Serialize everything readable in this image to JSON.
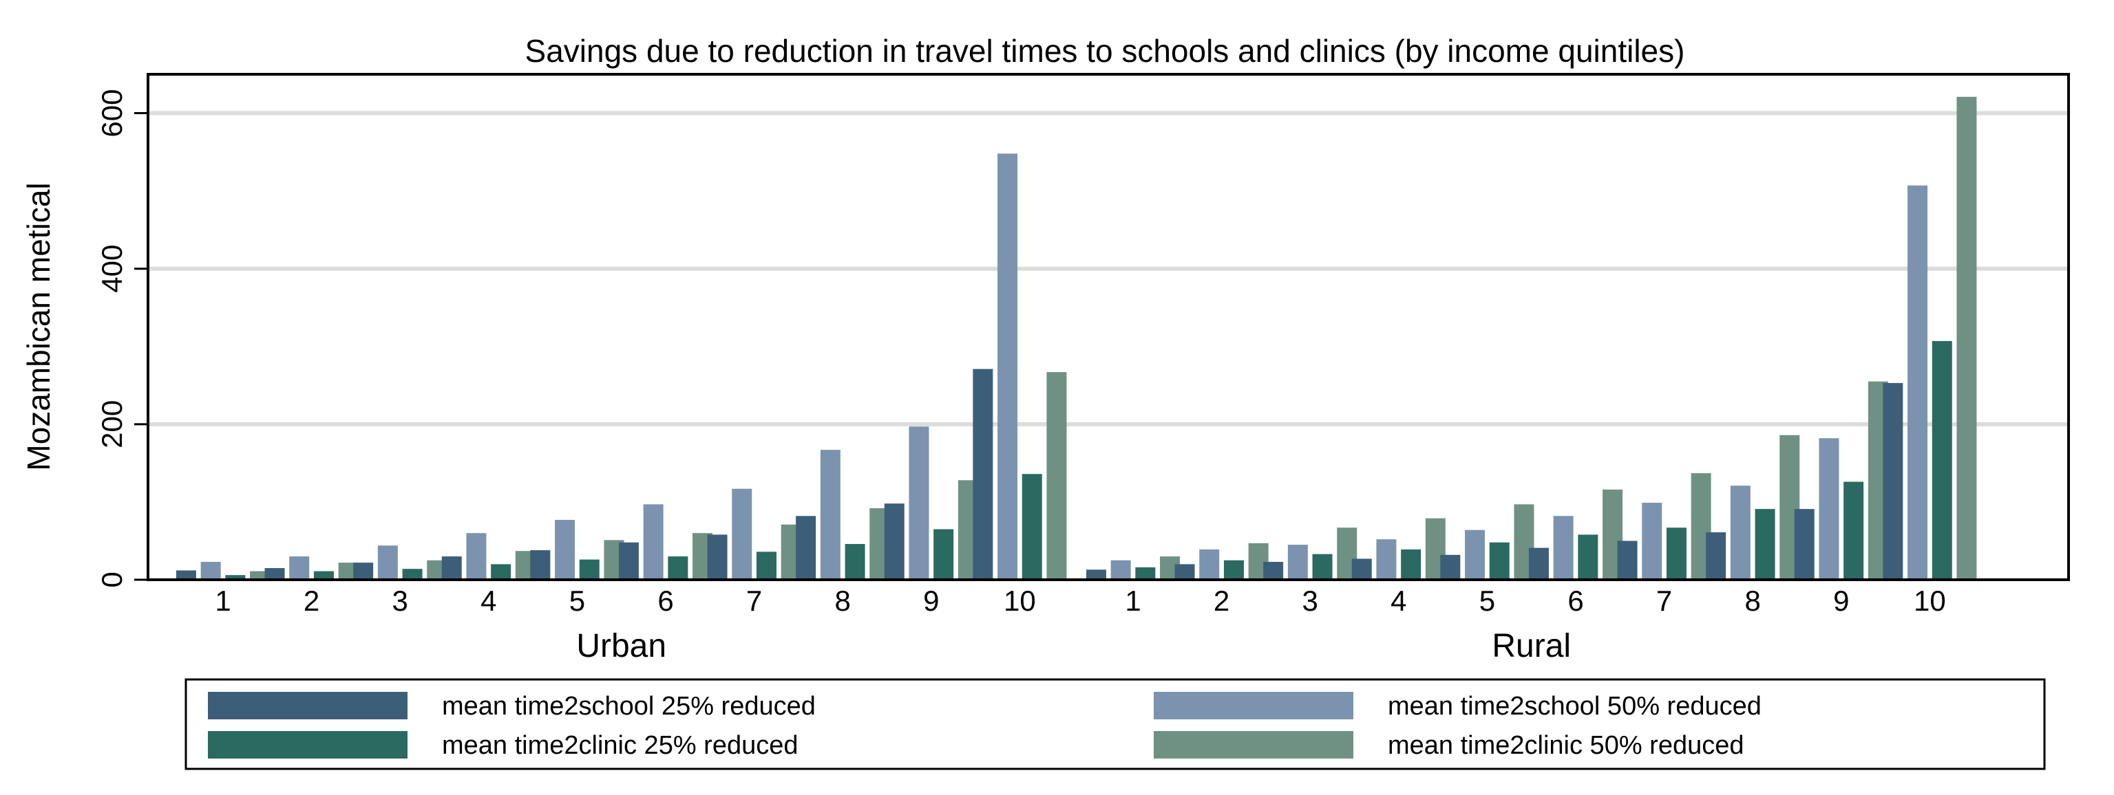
{
  "chart_data": {
    "type": "bar",
    "title": "Savings due to reduction in travel times to schools and clinics (by income quintiles)",
    "ylabel": "Mozambican metical",
    "ylim": [
      0,
      650
    ],
    "yticks": [
      0,
      200,
      400,
      600
    ],
    "grid": true,
    "legend_position": "bottom",
    "groups": [
      {
        "name": "Urban",
        "categories": [
          "1",
          "2",
          "3",
          "4",
          "5",
          "6",
          "7",
          "8",
          "9",
          "10"
        ],
        "series": [
          {
            "name": "mean time2school 25% reduced",
            "color": "#3d5e78",
            "values": [
              12,
              15,
              22,
              30,
              38,
              48,
              58,
              82,
              98,
              271
            ]
          },
          {
            "name": "mean time2school 50% reduced",
            "color": "#7b93ae",
            "values": [
              23,
              30,
              44,
              60,
              77,
              97,
              117,
              167,
              197,
              548
            ]
          },
          {
            "name": "mean time2clinic 25% reduced",
            "color": "#2b6a61",
            "values": [
              6,
              11,
              14,
              20,
              26,
              30,
              36,
              46,
              65,
              136
            ]
          },
          {
            "name": "mean time2clinic 50% reduced",
            "color": "#6f9184",
            "values": [
              11,
              22,
              25,
              37,
              51,
              60,
              71,
              92,
              128,
              267
            ]
          }
        ]
      },
      {
        "name": "Rural",
        "categories": [
          "1",
          "2",
          "3",
          "4",
          "5",
          "6",
          "7",
          "8",
          "9",
          "10"
        ],
        "series": [
          {
            "name": "mean time2school 25% reduced",
            "color": "#3d5e78",
            "values": [
              13,
              20,
              23,
              27,
              32,
              41,
              50,
              61,
              91,
              253
            ]
          },
          {
            "name": "mean time2school 50% reduced",
            "color": "#7b93ae",
            "values": [
              25,
              39,
              45,
              52,
              64,
              82,
              99,
              121,
              182,
              507
            ]
          },
          {
            "name": "mean time2clinic 25% reduced",
            "color": "#2b6a61",
            "values": [
              16,
              25,
              33,
              39,
              48,
              58,
              67,
              91,
              126,
              307
            ]
          },
          {
            "name": "mean time2clinic 50% reduced",
            "color": "#6f9184",
            "values": [
              30,
              47,
              67,
              79,
              97,
              116,
              137,
              186,
              255,
              621
            ]
          }
        ]
      }
    ],
    "legend": [
      {
        "label": "mean time2school 25% reduced",
        "color": "#3d5e78"
      },
      {
        "label": "mean time2school 50% reduced",
        "color": "#7b93ae"
      },
      {
        "label": "mean time2clinic 25% reduced",
        "color": "#2b6a61"
      },
      {
        "label": "mean time2clinic 50% reduced",
        "color": "#6f9184"
      }
    ],
    "colors": {
      "gridline": "#dcdcdc",
      "frame": "#000000"
    }
  }
}
